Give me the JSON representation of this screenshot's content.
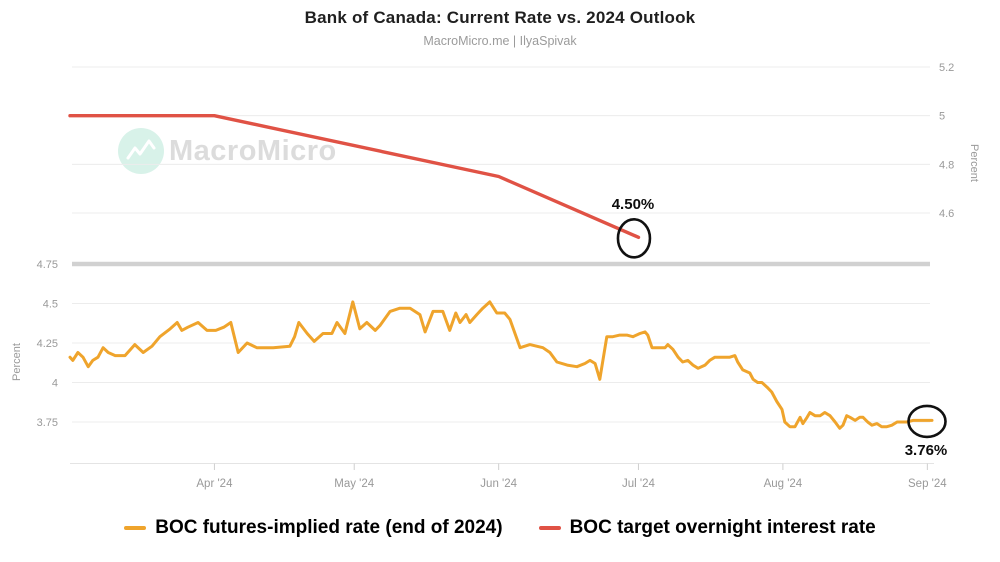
{
  "header": {
    "title": "Bank of Canada: Current Rate vs. 2024 Outlook",
    "subtitle": "MacroMicro.me | IlyaSpivak"
  },
  "watermark": {
    "text": "MacroMicro"
  },
  "colors": {
    "futures_orange": "#efa42c",
    "target_red": "#e05245",
    "grid": "#ececec",
    "separator": "#d1d1d1",
    "axis_line": "#e4e4e4",
    "tick": "#cfcfcf",
    "axis_text": "#999999",
    "annotation_text": "#0d0d0d",
    "annotation_circle": "#111111",
    "watermark_circle": "#d8f2e9",
    "watermark_text": "#dcdcdc"
  },
  "legend": {
    "items": [
      {
        "label": "BOC futures-implied rate (end of 2024)",
        "color_key": "futures_orange"
      },
      {
        "label": "BOC target overnight interest rate",
        "color_key": "target_red"
      }
    ]
  },
  "annotations": [
    {
      "text": "4.50%",
      "attach": "target_series_end",
      "placement": "above"
    },
    {
      "text": "3.76%",
      "attach": "futures_series_end",
      "placement": "below"
    }
  ],
  "chart_data": {
    "type": "line",
    "title": "Bank of Canada: Current Rate vs. 2024 Outlook",
    "x_axis": {
      "unit": "days since 2024-03-01",
      "domain": [
        0,
        185
      ],
      "tick_days": [
        31,
        61,
        92,
        122,
        153,
        184
      ],
      "tick_labels": [
        "Apr '24",
        "May '24",
        "Jun '24",
        "Jul '24",
        "Aug '24",
        "Sep '24"
      ]
    },
    "panel_top": {
      "ylabel": "Percent",
      "side": "right",
      "ticks": [
        5.2,
        5.0,
        4.8,
        4.6
      ],
      "tick_labels": [
        "5.2",
        "5",
        "4.8",
        "4.6"
      ],
      "ylim": [
        4.42,
        5.23
      ],
      "grid": true
    },
    "panel_bottom": {
      "ylabel": "Percent",
      "side": "left",
      "ticks": [
        4.75,
        4.5,
        4.25,
        4.0,
        3.75
      ],
      "tick_labels": [
        "4.75",
        "4.5",
        "4.25",
        "4",
        "3.75"
      ],
      "grid_ticks": [
        4.5,
        4.25,
        4.0,
        3.75
      ],
      "separator_tick": 4.75,
      "ylim": [
        3.48,
        4.75
      ],
      "grid": true
    },
    "series": [
      {
        "name": "BOC futures-implied rate (end of 2024)",
        "panel": "bottom",
        "color_key": "futures_orange",
        "end_label": "3.76%",
        "points": [
          [
            0,
            4.16
          ],
          [
            0.6,
            4.14
          ],
          [
            1.7,
            4.19
          ],
          [
            2.8,
            4.16
          ],
          [
            3.9,
            4.1
          ],
          [
            4.9,
            4.14
          ],
          [
            6,
            4.16
          ],
          [
            7.1,
            4.22
          ],
          [
            8.2,
            4.19
          ],
          [
            9.7,
            4.17
          ],
          [
            11.8,
            4.17
          ],
          [
            13.9,
            4.24
          ],
          [
            15.7,
            4.19
          ],
          [
            17.6,
            4.23
          ],
          [
            19.3,
            4.29
          ],
          [
            21.5,
            4.34
          ],
          [
            23,
            4.38
          ],
          [
            24,
            4.33
          ],
          [
            25.3,
            4.35
          ],
          [
            27.5,
            4.38
          ],
          [
            29.4,
            4.33
          ],
          [
            31.3,
            4.33
          ],
          [
            33,
            4.35
          ],
          [
            34.5,
            4.38
          ],
          [
            36.1,
            4.19
          ],
          [
            38,
            4.25
          ],
          [
            40.1,
            4.22
          ],
          [
            43.6,
            4.22
          ],
          [
            47.2,
            4.23
          ],
          [
            48.2,
            4.29
          ],
          [
            49.1,
            4.38
          ],
          [
            50.9,
            4.31
          ],
          [
            52.4,
            4.26
          ],
          [
            54.3,
            4.31
          ],
          [
            56.2,
            4.31
          ],
          [
            57.3,
            4.38
          ],
          [
            59,
            4.31
          ],
          [
            60.7,
            4.51
          ],
          [
            62.2,
            4.34
          ],
          [
            63.7,
            4.38
          ],
          [
            65.5,
            4.33
          ],
          [
            66.5,
            4.36
          ],
          [
            68.7,
            4.45
          ],
          [
            70.8,
            4.47
          ],
          [
            73,
            4.47
          ],
          [
            75.1,
            4.43
          ],
          [
            76.2,
            4.32
          ],
          [
            77.9,
            4.45
          ],
          [
            80,
            4.45
          ],
          [
            81.5,
            4.33
          ],
          [
            82.8,
            4.44
          ],
          [
            83.7,
            4.38
          ],
          [
            85,
            4.43
          ],
          [
            85.8,
            4.38
          ],
          [
            87.3,
            4.43
          ],
          [
            88.6,
            4.47
          ],
          [
            90.1,
            4.51
          ],
          [
            91.6,
            4.44
          ],
          [
            93.3,
            4.44
          ],
          [
            94.4,
            4.4
          ],
          [
            96.6,
            4.22
          ],
          [
            98.7,
            4.24
          ],
          [
            101.5,
            4.22
          ],
          [
            103,
            4.19
          ],
          [
            104.5,
            4.13
          ],
          [
            106.7,
            4.11
          ],
          [
            108.8,
            4.1
          ],
          [
            110.5,
            4.12
          ],
          [
            111.6,
            4.14
          ],
          [
            112.7,
            4.12
          ],
          [
            113.7,
            4.02
          ],
          [
            115.2,
            4.29
          ],
          [
            116.5,
            4.29
          ],
          [
            118,
            4.3
          ],
          [
            119.5,
            4.3
          ],
          [
            120.8,
            4.29
          ],
          [
            122.3,
            4.31
          ],
          [
            123.4,
            4.32
          ],
          [
            124,
            4.3
          ],
          [
            124.9,
            4.22
          ],
          [
            126.2,
            4.22
          ],
          [
            127.7,
            4.22
          ],
          [
            128.3,
            4.24
          ],
          [
            129.4,
            4.21
          ],
          [
            130.5,
            4.16
          ],
          [
            131.5,
            4.13
          ],
          [
            132.6,
            4.14
          ],
          [
            133.7,
            4.11
          ],
          [
            134.8,
            4.09
          ],
          [
            136.3,
            4.11
          ],
          [
            137.3,
            4.14
          ],
          [
            138.4,
            4.16
          ],
          [
            139.9,
            4.16
          ],
          [
            141.6,
            4.16
          ],
          [
            142.7,
            4.17
          ],
          [
            143.3,
            4.13
          ],
          [
            144.4,
            4.08
          ],
          [
            145.9,
            4.06
          ],
          [
            146.6,
            4.02
          ],
          [
            147.6,
            4.0
          ],
          [
            148.5,
            4.0
          ],
          [
            149.6,
            3.97
          ],
          [
            150.6,
            3.94
          ],
          [
            151.7,
            3.88
          ],
          [
            152.8,
            3.83
          ],
          [
            153.4,
            3.75
          ],
          [
            154.5,
            3.72
          ],
          [
            155.6,
            3.72
          ],
          [
            156.7,
            3.78
          ],
          [
            157.3,
            3.74
          ],
          [
            158.2,
            3.78
          ],
          [
            158.8,
            3.81
          ],
          [
            159.9,
            3.79
          ],
          [
            161,
            3.79
          ],
          [
            162,
            3.81
          ],
          [
            163.1,
            3.79
          ],
          [
            164.2,
            3.75
          ],
          [
            165.2,
            3.71
          ],
          [
            165.9,
            3.73
          ],
          [
            166.7,
            3.79
          ],
          [
            167.4,
            3.78
          ],
          [
            168.5,
            3.76
          ],
          [
            169.5,
            3.78
          ],
          [
            170.2,
            3.78
          ],
          [
            171.2,
            3.75
          ],
          [
            172.1,
            3.73
          ],
          [
            173.2,
            3.74
          ],
          [
            174.2,
            3.72
          ],
          [
            175.3,
            3.72
          ],
          [
            176.4,
            3.73
          ],
          [
            177.5,
            3.75
          ],
          [
            178.5,
            3.75
          ],
          [
            179.6,
            3.75
          ],
          [
            180.9,
            3.76
          ],
          [
            182.4,
            3.76
          ],
          [
            183.9,
            3.76
          ],
          [
            185,
            3.76
          ]
        ]
      },
      {
        "name": "BOC target overnight interest rate",
        "panel": "top",
        "color_key": "target_red",
        "end_label": "4.50%",
        "points": [
          [
            0,
            5.0
          ],
          [
            31,
            5.0
          ],
          [
            92,
            4.75
          ],
          [
            122,
            4.5
          ]
        ]
      }
    ],
    "legend_position": "bottom"
  }
}
